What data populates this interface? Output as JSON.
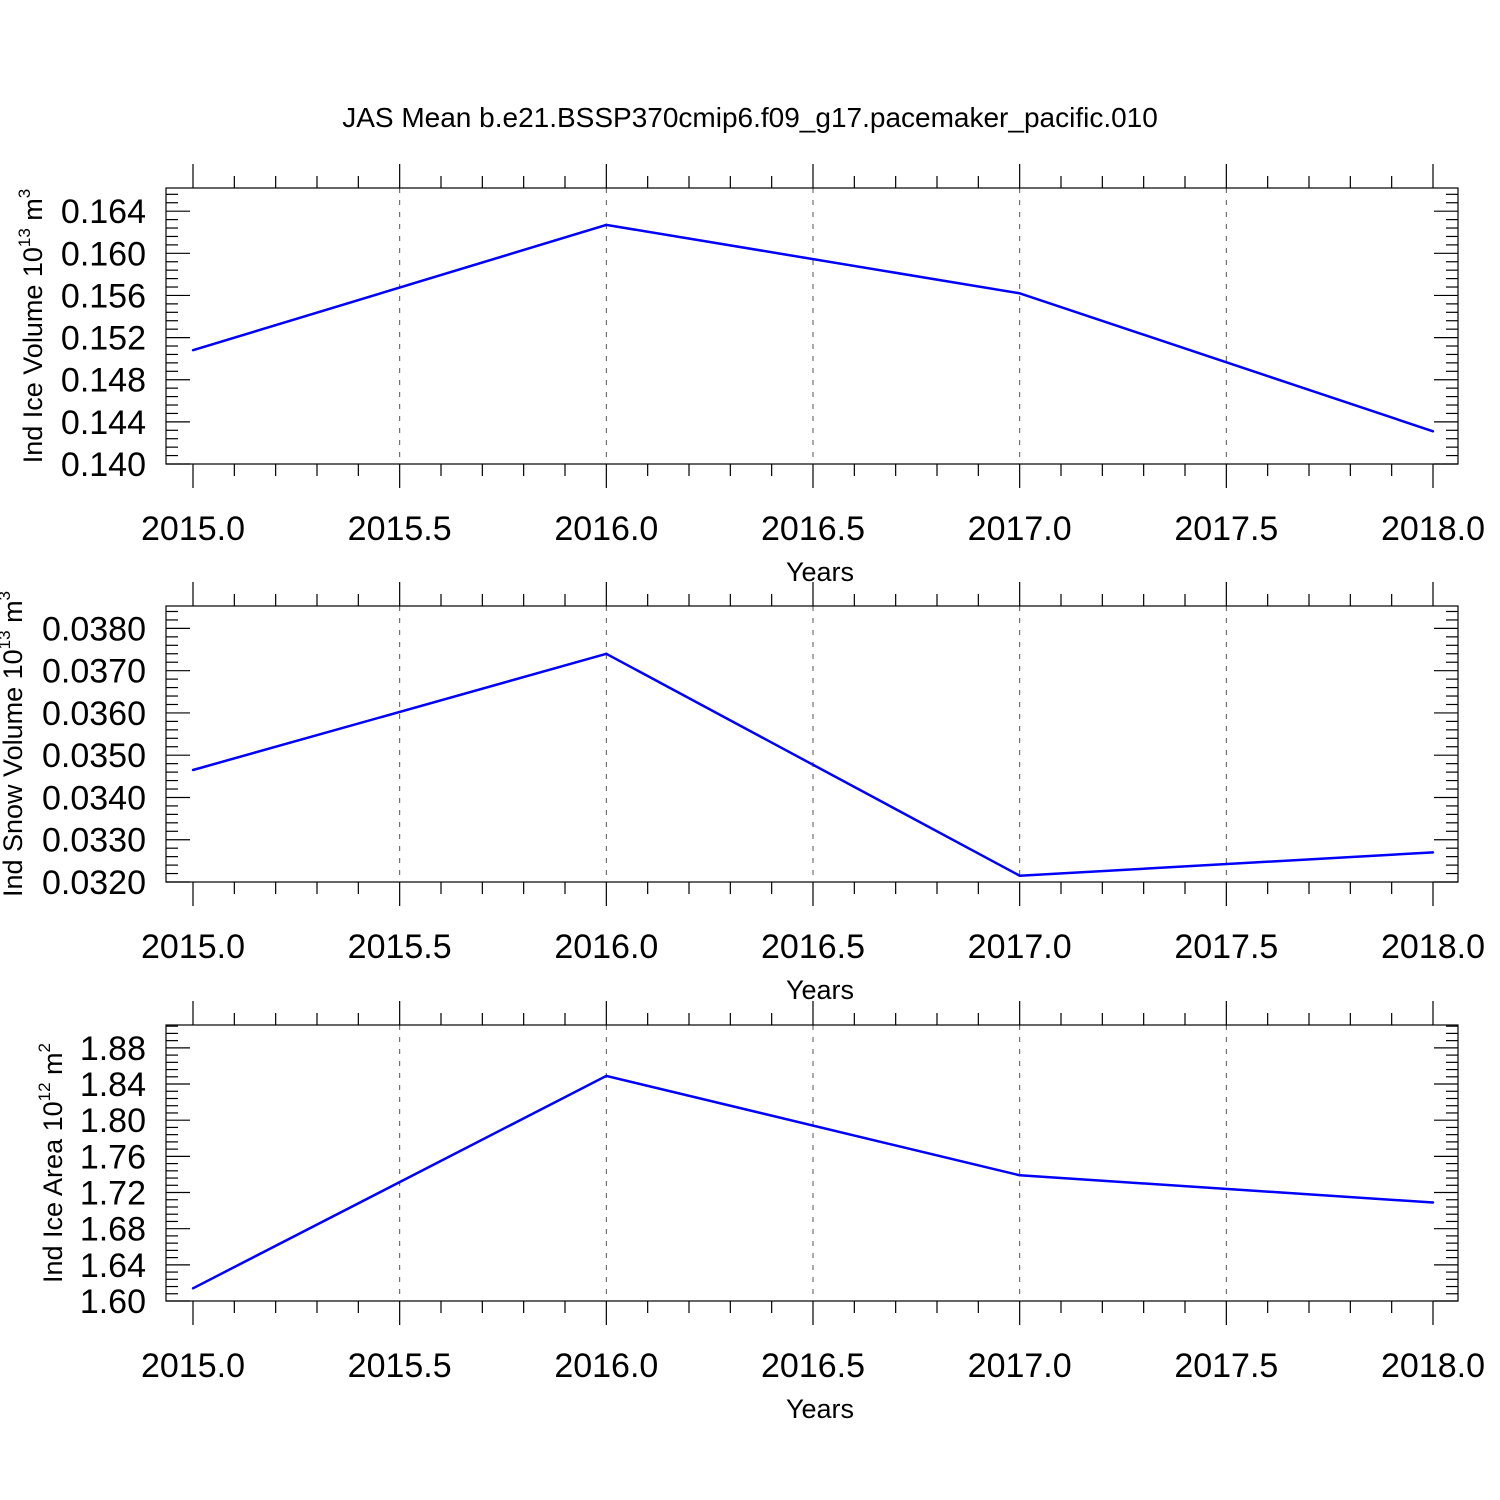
{
  "figure": {
    "title": "JAS Mean b.e21.BSSP370cmip6.f09_g17.pacemaker_pacific.010",
    "series_color": "#0000ff"
  },
  "chart_data": [
    {
      "type": "line",
      "title": "",
      "xlabel": "Years",
      "ylabel": {
        "text": "Ind Ice Volume 10",
        "exponent": "13",
        "unit": " m",
        "unit_exponent": "3"
      },
      "xlim": [
        2015.0,
        2018.05
      ],
      "ylim": [
        0.14,
        0.1662
      ],
      "x_ticks": [
        "2015.0",
        "2015.5",
        "2016.0",
        "2016.5",
        "2017.0",
        "2017.5",
        "2018.0"
      ],
      "y_ticks": [
        "0.140",
        "0.144",
        "0.148",
        "0.152",
        "0.156",
        "0.160",
        "0.164"
      ],
      "grid": "dashed vertical at major x ticks",
      "series": [
        {
          "x": [
            2015,
            2016,
            2017,
            2018
          ],
          "values": [
            0.1508,
            0.1627,
            0.1562,
            0.1431
          ]
        }
      ]
    },
    {
      "type": "line",
      "title": "",
      "xlabel": "Years",
      "ylabel": {
        "text": "Ind Snow Volume 10",
        "exponent": "13",
        "unit": " m",
        "unit_exponent": "3"
      },
      "xlim": [
        2015.0,
        2018.05
      ],
      "ylim": [
        0.032,
        0.03853
      ],
      "x_ticks": [
        "2015.0",
        "2015.5",
        "2016.0",
        "2016.5",
        "2017.0",
        "2017.5",
        "2018.0"
      ],
      "y_ticks": [
        "0.0320",
        "0.0330",
        "0.0340",
        "0.0350",
        "0.0360",
        "0.0370",
        "0.0380"
      ],
      "grid": "dashed vertical at major x ticks",
      "series": [
        {
          "x": [
            2015,
            2016,
            2017,
            2018
          ],
          "values": [
            0.03465,
            0.0374,
            0.03215,
            0.0327
          ]
        }
      ]
    },
    {
      "type": "line",
      "title": "",
      "xlabel": "Years",
      "ylabel": {
        "text": "Ind Ice Area 10",
        "exponent": "12",
        "unit": " m",
        "unit_exponent": "2"
      },
      "xlim": [
        2015.0,
        2018.05
      ],
      "ylim": [
        1.6,
        1.9053
      ],
      "x_ticks": [
        "2015.0",
        "2015.5",
        "2016.0",
        "2016.5",
        "2017.0",
        "2017.5",
        "2018.0"
      ],
      "y_ticks": [
        "1.60",
        "1.64",
        "1.68",
        "1.72",
        "1.76",
        "1.80",
        "1.84",
        "1.88"
      ],
      "grid": "dashed vertical at major x ticks",
      "series": [
        {
          "x": [
            2015,
            2016,
            2017,
            2018
          ],
          "values": [
            1.614,
            1.849,
            1.739,
            1.709
          ]
        }
      ]
    }
  ]
}
